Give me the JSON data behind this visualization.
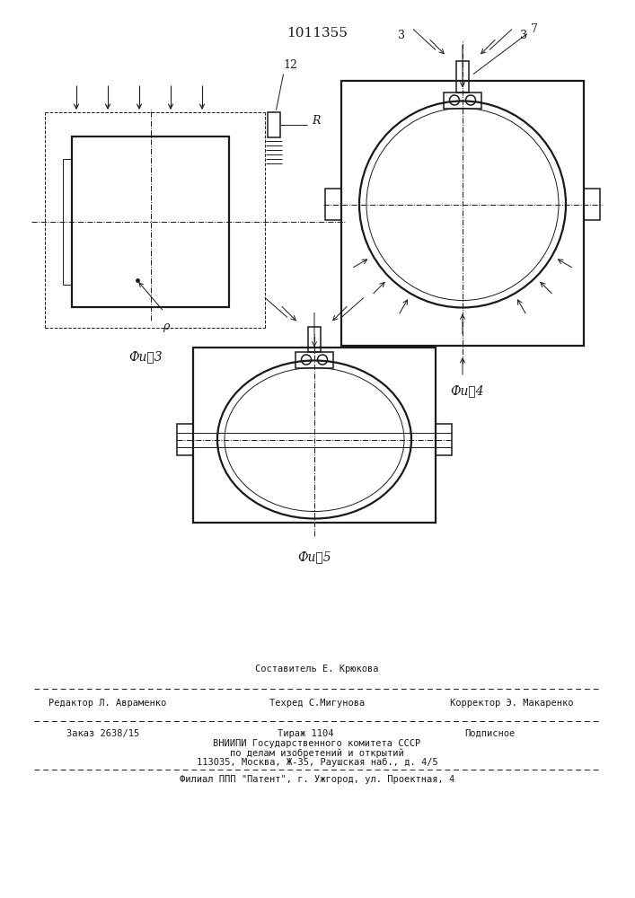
{
  "title": "1011355",
  "bg_color": "#ffffff",
  "line_color": "#1a1a1a",
  "fig3_label": "Фи⸖3",
  "fig4_label": "Фи⸖4",
  "fig5_label": "Фи⸖5",
  "label_12": "12",
  "label_R": "R",
  "label_p": "ρ",
  "label_3a": "3",
  "label_3b": "3",
  "label_7": "7",
  "footer_line1": "Составитель Е. Крюкова",
  "footer_editor": "Редактор Л. Авраменко",
  "footer_tech": "Техред С.Мигунова",
  "footer_corr": "Корректор Э. Макаренко",
  "footer_zakaz": "Заказ 2638/15",
  "footer_tirazh": "Тираж 1104",
  "footer_podp": "Подписное",
  "footer_line4": "ВНИИПИ Государственного комитета СССР",
  "footer_line5": "по делам изобретений и открытий",
  "footer_line6": "113035, Москва, Ж-35, Раушская наб., д. 4/5",
  "footer_line7": "Филиал ППП \"Патент\", г. Ужгород, ул. Проектная, 4"
}
